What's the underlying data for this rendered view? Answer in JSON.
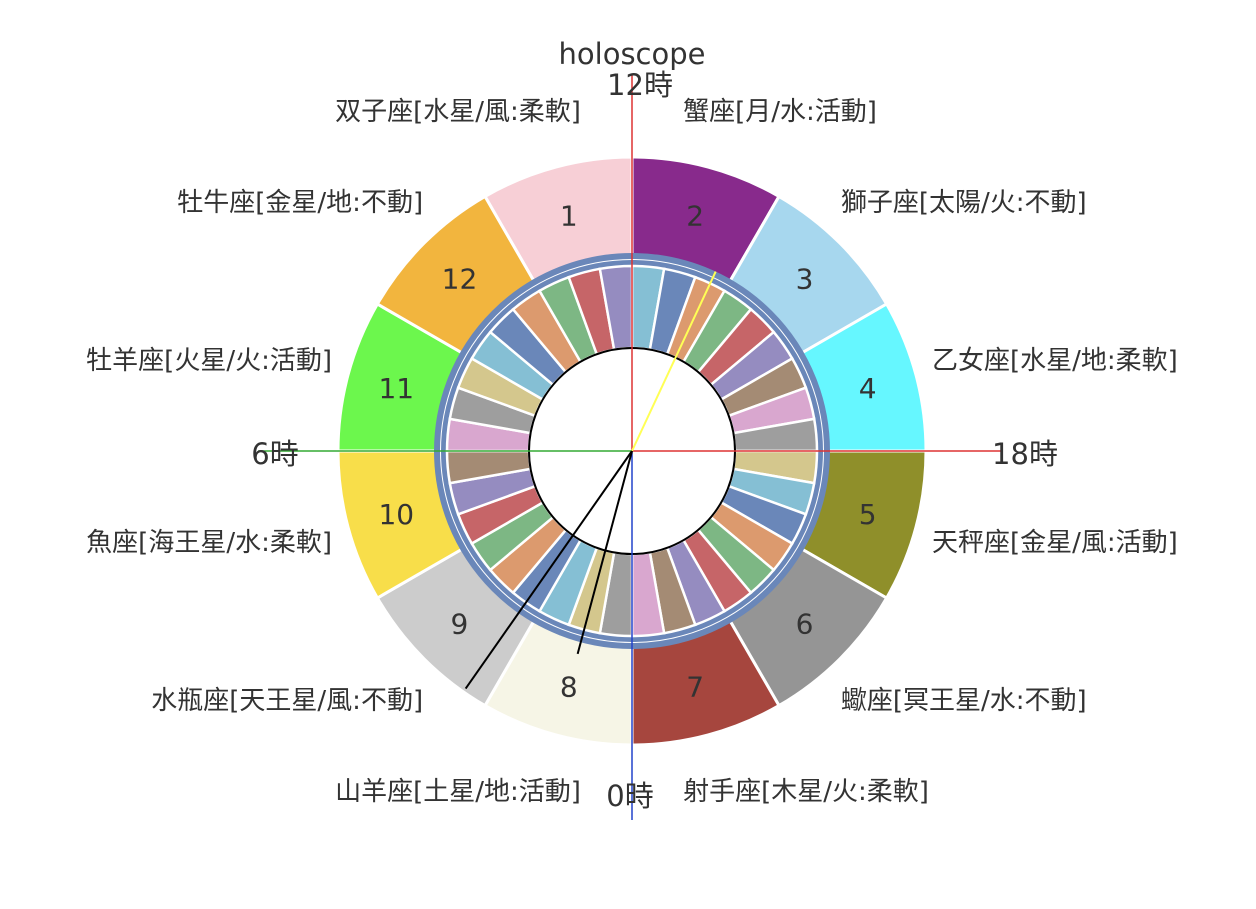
{
  "chart_data": {
    "type": "pie",
    "title": "holoscope",
    "hour_labels": {
      "top": "12時",
      "right": "18時",
      "bottom": "0時",
      "left": "6時"
    },
    "houses": [
      {
        "number": "1",
        "sign_label": "双子座[水星/風:柔軟]",
        "color": "#f7cfd6",
        "value": 1
      },
      {
        "number": "2",
        "sign_label": "蟹座[月/水:活動]",
        "color": "#882a8c",
        "value": 1
      },
      {
        "number": "3",
        "sign_label": "獅子座[太陽/火:不動]",
        "color": "#a7d7ee",
        "value": 1
      },
      {
        "number": "4",
        "sign_label": "乙女座[水星/地:柔軟]",
        "color": "#66f7ff",
        "value": 1
      },
      {
        "number": "5",
        "sign_label": "天秤座[金星/風:活動]",
        "color": "#8f8f2a",
        "value": 1
      },
      {
        "number": "6",
        "sign_label": "蠍座[冥王星/水:不動]",
        "color": "#959595",
        "value": 1
      },
      {
        "number": "7",
        "sign_label": "射手座[木星/火:柔軟]",
        "color": "#a6463e",
        "value": 1
      },
      {
        "number": "8",
        "sign_label": "山羊座[土星/地:活動]",
        "color": "#f6f5e6",
        "value": 1
      },
      {
        "number": "9",
        "sign_label": "水瓶座[天王星/風:不動]",
        "color": "#cccccc",
        "value": 1
      },
      {
        "number": "10",
        "sign_label": "魚座[海王星/水:柔軟]",
        "color": "#f8de4a",
        "value": 1
      },
      {
        "number": "11",
        "sign_label": "牡羊座[火星/火:活動]",
        "color": "#6cf74d",
        "value": 1
      },
      {
        "number": "12",
        "sign_label": "牡牛座[金星/地:不動]",
        "color": "#f2b53e",
        "value": 1
      }
    ],
    "ring_band_color": "#6a87b9",
    "inner_ring_colors": [
      "#85bfd4",
      "#6a87b9",
      "#dc9a6e",
      "#7db784",
      "#c66568",
      "#958cc0",
      "#a48b74",
      "#d9a7cf",
      "#9e9e9e",
      "#d4c78d"
    ],
    "inner_ring_segment_count": 36,
    "hands": [
      {
        "name": "yellow",
        "angle_deg": 65,
        "color": "#ffff55"
      },
      {
        "name": "long",
        "angle_deg": 235,
        "color": "#000000"
      },
      {
        "name": "short",
        "angle_deg": 255,
        "color": "#000000"
      }
    ],
    "axis_colors": {
      "top": "#dd3333",
      "right": "#dd3333",
      "bottom": "#2244cc",
      "left": "#33aa33"
    },
    "legend": "none",
    "grid": false
  }
}
